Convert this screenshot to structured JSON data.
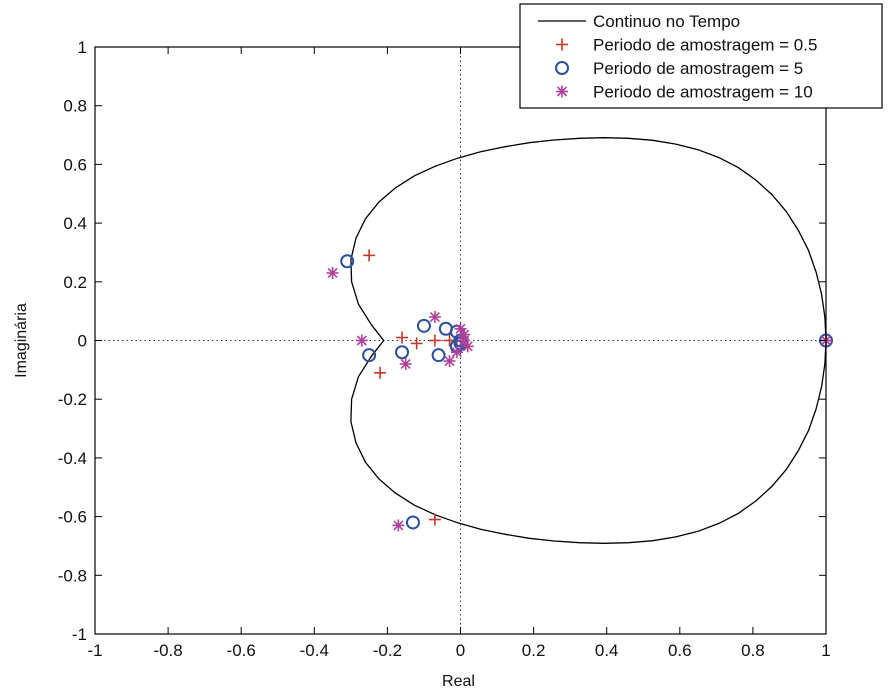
{
  "chart_data": {
    "type": "scatter",
    "title": "",
    "xlabel": "Real",
    "ylabel": "Imaginária",
    "xlim": [
      -1,
      1
    ],
    "ylim": [
      -1,
      1
    ],
    "xticks": [
      -1,
      -0.8,
      -0.6,
      -0.4,
      -0.2,
      0,
      0.2,
      0.4,
      0.6,
      0.8,
      1
    ],
    "yticks": [
      -1,
      -0.8,
      -0.6,
      -0.4,
      -0.2,
      0,
      0.2,
      0.4,
      0.6,
      0.8,
      1
    ],
    "grid": false,
    "legend_position": "top-right",
    "zero_lines": "dotted",
    "series": [
      {
        "name": "Continuo no Tempo",
        "kind": "line",
        "color": "#000000",
        "points": [
          [
            1.0,
            0.0
          ],
          [
            0.997,
            0.079
          ],
          [
            0.988,
            0.157
          ],
          [
            0.973,
            0.233
          ],
          [
            0.952,
            0.307
          ],
          [
            0.924,
            0.376
          ],
          [
            0.891,
            0.44
          ],
          [
            0.852,
            0.497
          ],
          [
            0.808,
            0.547
          ],
          [
            0.76,
            0.589
          ],
          [
            0.707,
            0.623
          ],
          [
            0.65,
            0.65
          ],
          [
            0.589,
            0.669
          ],
          [
            0.526,
            0.682
          ],
          [
            0.46,
            0.689
          ],
          [
            0.393,
            0.691
          ],
          [
            0.325,
            0.689
          ],
          [
            0.256,
            0.683
          ],
          [
            0.188,
            0.674
          ],
          [
            0.121,
            0.66
          ],
          [
            0.055,
            0.643
          ],
          [
            -0.008,
            0.621
          ],
          [
            -0.069,
            0.594
          ],
          [
            -0.126,
            0.561
          ],
          [
            -0.178,
            0.52
          ],
          [
            -0.223,
            0.472
          ],
          [
            -0.26,
            0.415
          ],
          [
            -0.286,
            0.349
          ],
          [
            -0.3,
            0.276
          ],
          [
            -0.298,
            0.2
          ],
          [
            -0.279,
            0.123
          ],
          [
            -0.243,
            0.052
          ],
          [
            -0.21,
            0.0
          ],
          [
            -0.243,
            -0.052
          ],
          [
            -0.279,
            -0.123
          ],
          [
            -0.298,
            -0.2
          ],
          [
            -0.3,
            -0.276
          ],
          [
            -0.286,
            -0.349
          ],
          [
            -0.26,
            -0.415
          ],
          [
            -0.223,
            -0.472
          ],
          [
            -0.178,
            -0.52
          ],
          [
            -0.126,
            -0.561
          ],
          [
            -0.069,
            -0.594
          ],
          [
            -0.008,
            -0.621
          ],
          [
            0.055,
            -0.643
          ],
          [
            0.121,
            -0.66
          ],
          [
            0.188,
            -0.674
          ],
          [
            0.256,
            -0.683
          ],
          [
            0.325,
            -0.689
          ],
          [
            0.393,
            -0.691
          ],
          [
            0.46,
            -0.689
          ],
          [
            0.526,
            -0.682
          ],
          [
            0.589,
            -0.669
          ],
          [
            0.65,
            -0.65
          ],
          [
            0.707,
            -0.623
          ],
          [
            0.76,
            -0.589
          ],
          [
            0.808,
            -0.547
          ],
          [
            0.852,
            -0.497
          ],
          [
            0.891,
            -0.44
          ],
          [
            0.924,
            -0.376
          ],
          [
            0.952,
            -0.307
          ],
          [
            0.973,
            -0.233
          ],
          [
            0.988,
            -0.157
          ],
          [
            0.997,
            -0.079
          ],
          [
            1.0,
            0.0
          ]
        ]
      },
      {
        "name": "Periodo de amostragem = 0.5",
        "kind": "marker",
        "marker": "plus",
        "color": "#c0392b",
        "points": [
          [
            1.0,
            0.0
          ],
          [
            -0.25,
            0.29
          ],
          [
            -0.16,
            0.01
          ],
          [
            -0.22,
            -0.11
          ],
          [
            -0.07,
            -0.61
          ],
          [
            -0.12,
            -0.01
          ],
          [
            -0.07,
            0.0
          ],
          [
            -0.03,
            0.0
          ],
          [
            -0.01,
            0.0
          ]
        ]
      },
      {
        "name": "Periodo de amostragem = 5",
        "kind": "marker",
        "marker": "diamond",
        "color": "#2c4f9e",
        "points": [
          [
            1.0,
            0.0
          ],
          [
            -0.31,
            0.27
          ],
          [
            -0.25,
            -0.05
          ],
          [
            -0.16,
            -0.04
          ],
          [
            -0.13,
            -0.62
          ],
          [
            -0.1,
            0.05
          ],
          [
            -0.06,
            -0.05
          ],
          [
            -0.04,
            0.04
          ],
          [
            -0.01,
            0.03
          ],
          [
            0.0,
            0.0
          ],
          [
            -0.01,
            -0.02
          ],
          [
            0.0,
            -0.01
          ]
        ]
      },
      {
        "name": "Periodo de amostragem = 10",
        "kind": "marker",
        "marker": "star",
        "color": "#b0419a",
        "points": [
          [
            1.0,
            0.0
          ],
          [
            -0.35,
            0.23
          ],
          [
            -0.27,
            0.0
          ],
          [
            -0.15,
            -0.08
          ],
          [
            -0.17,
            -0.63
          ],
          [
            -0.07,
            0.08
          ],
          [
            -0.03,
            -0.07
          ],
          [
            0.0,
            0.04
          ],
          [
            0.01,
            0.0
          ],
          [
            0.02,
            -0.02
          ],
          [
            0.01,
            0.02
          ],
          [
            -0.01,
            -0.04
          ]
        ]
      }
    ]
  }
}
